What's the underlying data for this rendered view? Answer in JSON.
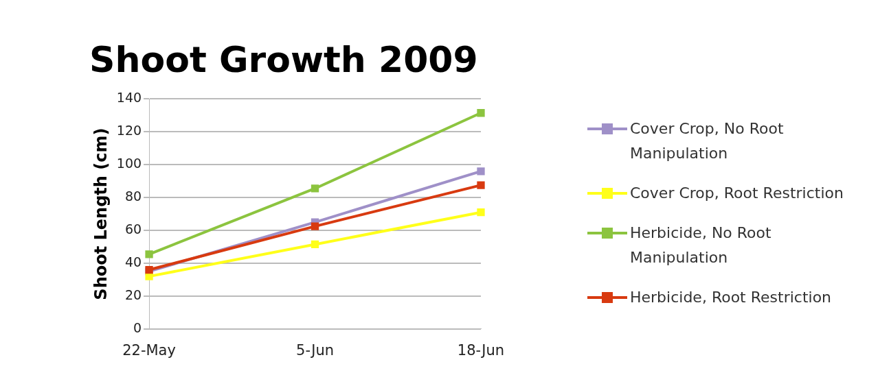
{
  "chart_data": {
    "type": "line",
    "title": "Shoot Growth 2009",
    "ylabel": "Shoot Length (cm)",
    "categories": [
      "22-May",
      "5-Jun",
      "18-Jun"
    ],
    "series": [
      {
        "name": "Cover Crop, No Root Manipulation",
        "color": "#9f90c8",
        "values": [
          35,
          65,
          96
        ]
      },
      {
        "name": "Cover Crop, Root Restriction",
        "color": "#ffff1a",
        "values": [
          32,
          51.5,
          71
        ]
      },
      {
        "name": "Herbicide, No Root Manipulation",
        "color": "#8cc43f",
        "values": [
          45.5,
          85.5,
          131.5
        ]
      },
      {
        "name": "Herbicide, Root Restriction",
        "color": "#d83a10",
        "values": [
          36,
          62.5,
          87.5
        ]
      }
    ],
    "ylim": [
      0,
      140
    ],
    "yticks": [
      0,
      20,
      40,
      60,
      80,
      100,
      120,
      140
    ],
    "grid": "y",
    "legend": "right",
    "marker": "square",
    "line_style": "solid"
  }
}
